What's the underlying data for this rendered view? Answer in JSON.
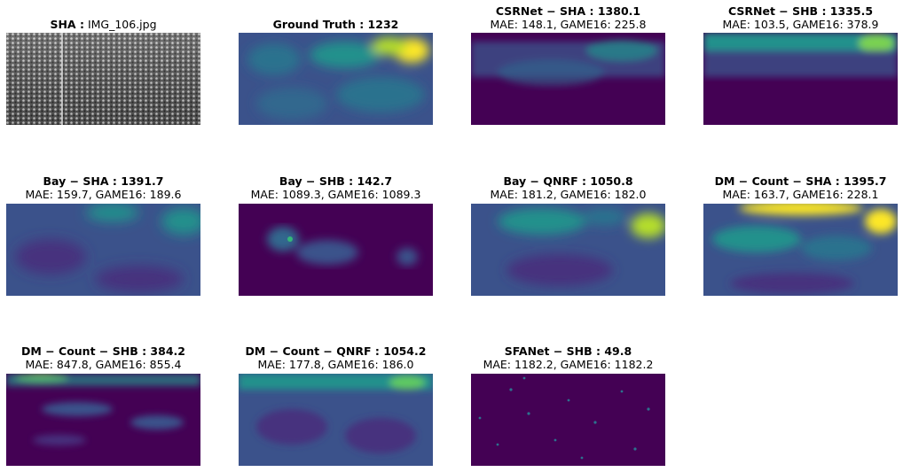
{
  "panels": [
    {
      "title_bold": "SHA :",
      "title_plain": " IMG_106.jpg",
      "metrics": "",
      "kind": "photo"
    },
    {
      "title_bold": "Ground Truth : 1232",
      "title_plain": "",
      "metrics": "",
      "kind": "heatmap-gt"
    },
    {
      "title_bold": "CSRNet − SHA : 1380.1",
      "title_plain": "",
      "metrics": "MAE: 148.1, GAME16: 225.8",
      "kind": "heatmap-csr-sha"
    },
    {
      "title_bold": "CSRNet − SHB : 1335.5",
      "title_plain": "",
      "metrics": "MAE: 103.5, GAME16: 378.9",
      "kind": "heatmap-csr-shb"
    },
    {
      "title_bold": "Bay − SHA : 1391.7",
      "title_plain": "",
      "metrics": "MAE: 159.7, GAME16: 189.6",
      "kind": "heatmap-bay-sha"
    },
    {
      "title_bold": "Bay − SHB : 142.7",
      "title_plain": "",
      "metrics": "MAE: 1089.3, GAME16: 1089.3",
      "kind": "heatmap-bay-shb"
    },
    {
      "title_bold": "Bay − QNRF : 1050.8",
      "title_plain": "",
      "metrics": "MAE: 181.2, GAME16: 182.0",
      "kind": "heatmap-bay-qnrf"
    },
    {
      "title_bold": "DM − Count − SHA : 1395.7",
      "title_plain": "",
      "metrics": "MAE: 163.7, GAME16: 228.1",
      "kind": "heatmap-dm-sha"
    },
    {
      "title_bold": "DM − Count − SHB : 384.2",
      "title_plain": "",
      "metrics": "MAE: 847.8, GAME16: 855.4",
      "kind": "heatmap-dm-shb"
    },
    {
      "title_bold": "DM − Count − QNRF : 1054.2",
      "title_plain": "",
      "metrics": "MAE: 177.8, GAME16: 186.0",
      "kind": "heatmap-dm-qnrf"
    },
    {
      "title_bold": "SFANet − SHB : 49.8",
      "title_plain": "",
      "metrics": "MAE: 1182.2, GAME16: 1182.2",
      "kind": "heatmap-sfanet-shb"
    }
  ],
  "colors": {
    "viridis_low": "#440154",
    "viridis_mid": "#21918c",
    "viridis_high": "#fde725"
  }
}
